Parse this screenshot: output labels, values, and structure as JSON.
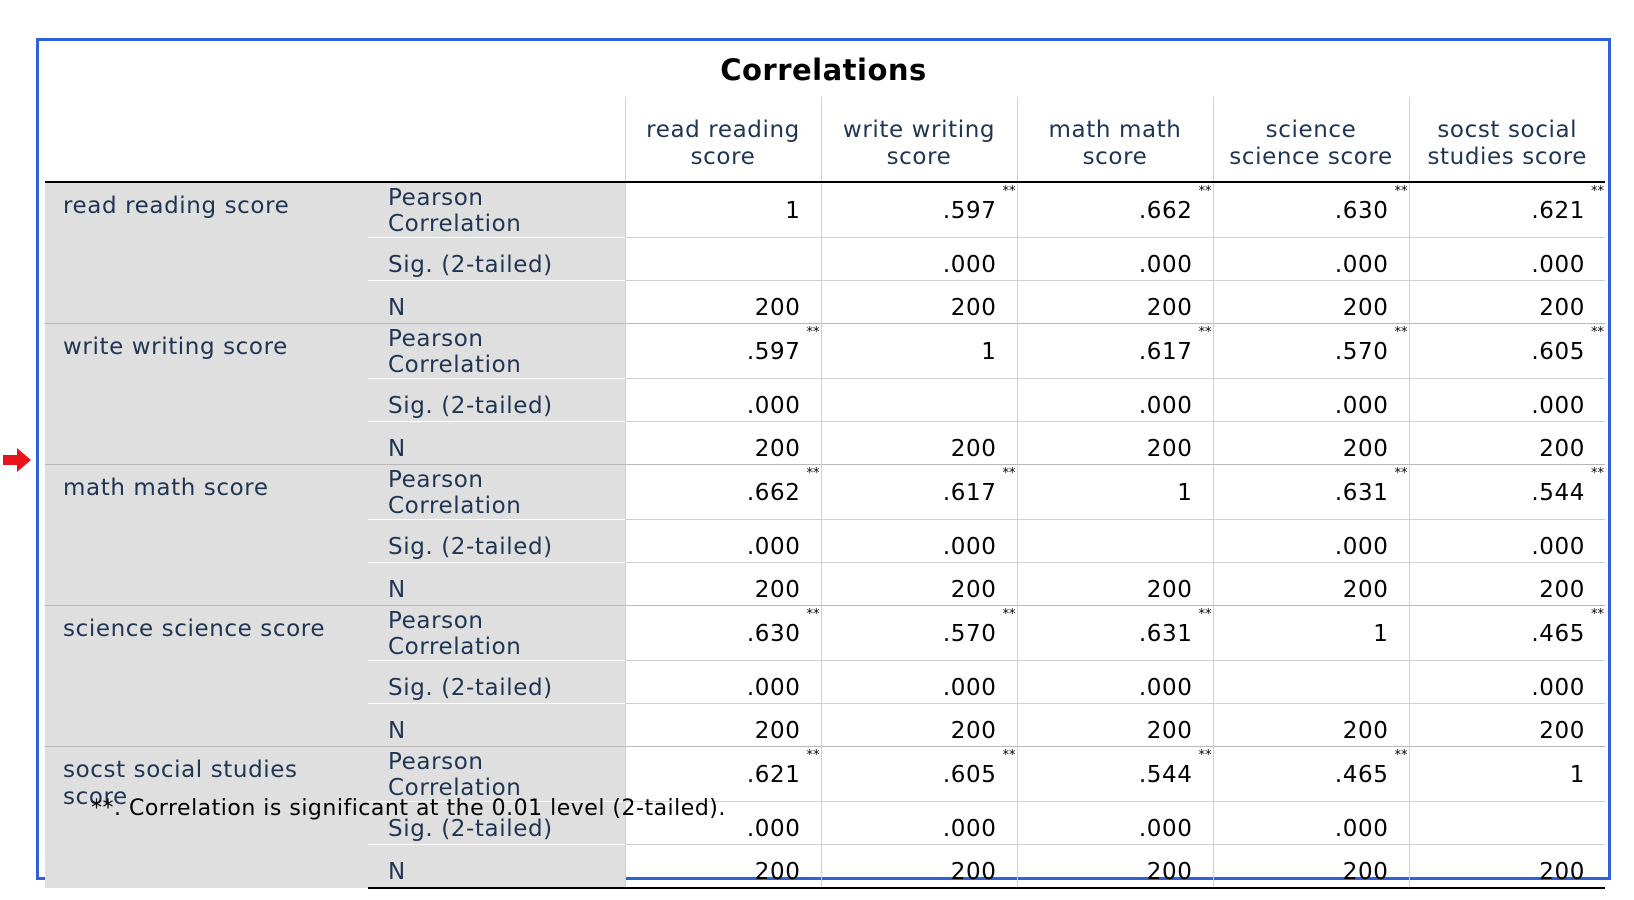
{
  "title": "Correlations",
  "footnote": "**. Correlation is significant at the 0.01 level (2-tailed).",
  "marker": {
    "icon": "red-arrow-right-icon",
    "color": "#e8141a",
    "points_to_row": 2
  },
  "colors": {
    "frame": "#2f62d6",
    "label_bg": "#dfdfdf",
    "label_text": "#1f3553"
  },
  "columns": [
    "read reading score",
    "write writing score",
    "math math score",
    "science science score",
    "socst social studies score"
  ],
  "stat_labels": [
    "Pearson Correlation",
    "Sig. (2-tailed)",
    "N"
  ],
  "rows": [
    {
      "variable": "read reading score",
      "pearson": [
        "1",
        ".597",
        ".662",
        ".630",
        ".621"
      ],
      "pearson_flag": [
        "",
        "**",
        "**",
        "**",
        "**"
      ],
      "sig": [
        "",
        ".000",
        ".000",
        ".000",
        ".000"
      ],
      "n": [
        "200",
        "200",
        "200",
        "200",
        "200"
      ]
    },
    {
      "variable": "write writing score",
      "pearson": [
        ".597",
        "1",
        ".617",
        ".570",
        ".605"
      ],
      "pearson_flag": [
        "**",
        "",
        "**",
        "**",
        "**"
      ],
      "sig": [
        ".000",
        "",
        ".000",
        ".000",
        ".000"
      ],
      "n": [
        "200",
        "200",
        "200",
        "200",
        "200"
      ]
    },
    {
      "variable": "math math score",
      "pearson": [
        ".662",
        ".617",
        "1",
        ".631",
        ".544"
      ],
      "pearson_flag": [
        "**",
        "**",
        "",
        "**",
        "**"
      ],
      "sig": [
        ".000",
        ".000",
        "",
        ".000",
        ".000"
      ],
      "n": [
        "200",
        "200",
        "200",
        "200",
        "200"
      ]
    },
    {
      "variable": "science science score",
      "pearson": [
        ".630",
        ".570",
        ".631",
        "1",
        ".465"
      ],
      "pearson_flag": [
        "**",
        "**",
        "**",
        "",
        "**"
      ],
      "sig": [
        ".000",
        ".000",
        ".000",
        "",
        ".000"
      ],
      "n": [
        "200",
        "200",
        "200",
        "200",
        "200"
      ]
    },
    {
      "variable": "socst social studies score",
      "pearson": [
        ".621",
        ".605",
        ".544",
        ".465",
        "1"
      ],
      "pearson_flag": [
        "**",
        "**",
        "**",
        "**",
        ""
      ],
      "sig": [
        ".000",
        ".000",
        ".000",
        ".000",
        ""
      ],
      "n": [
        "200",
        "200",
        "200",
        "200",
        "200"
      ]
    }
  ]
}
